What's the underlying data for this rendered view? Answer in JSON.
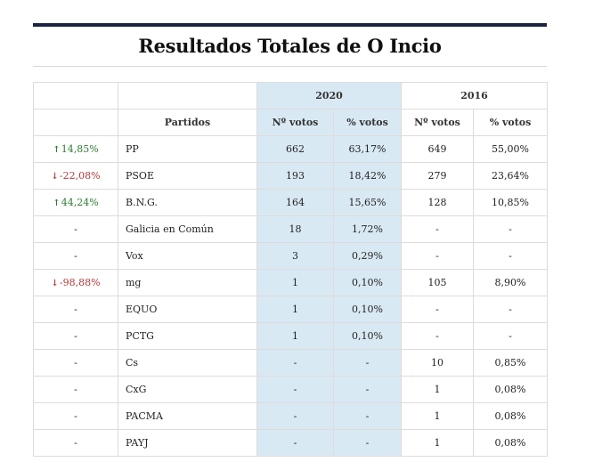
{
  "title": "Resultados Totales de O Incio",
  "header": {
    "year_2020": "2020",
    "year_2016": "2016",
    "partidos": "Partidos",
    "votos_2020": "Nº votos",
    "pct_2020": "% votos",
    "votos_2016": "Nº votos",
    "pct_2016": "% votos"
  },
  "rows": [
    {
      "change": "14,85%",
      "dir": "up",
      "party": "PP",
      "v20": "662",
      "p20": "63,17%",
      "v16": "649",
      "p16": "55,00%"
    },
    {
      "change": "-22,08%",
      "dir": "down",
      "party": "PSOE",
      "v20": "193",
      "p20": "18,42%",
      "v16": "279",
      "p16": "23,64%"
    },
    {
      "change": "44,24%",
      "dir": "up",
      "party": "B.N.G.",
      "v20": "164",
      "p20": "15,65%",
      "v16": "128",
      "p16": "10,85%"
    },
    {
      "change": "-",
      "dir": "none",
      "party": "Galicia en Común",
      "v20": "18",
      "p20": "1,72%",
      "v16": "-",
      "p16": "-"
    },
    {
      "change": "-",
      "dir": "none",
      "party": "Vox",
      "v20": "3",
      "p20": "0,29%",
      "v16": "-",
      "p16": "-"
    },
    {
      "change": "-98,88%",
      "dir": "down",
      "party": "mg",
      "v20": "1",
      "p20": "0,10%",
      "v16": "105",
      "p16": "8,90%"
    },
    {
      "change": "-",
      "dir": "none",
      "party": "EQUO",
      "v20": "1",
      "p20": "0,10%",
      "v16": "-",
      "p16": "-"
    },
    {
      "change": "-",
      "dir": "none",
      "party": "PCTG",
      "v20": "1",
      "p20": "0,10%",
      "v16": "-",
      "p16": "-"
    },
    {
      "change": "-",
      "dir": "none",
      "party": "Cs",
      "v20": "-",
      "p20": "-",
      "v16": "10",
      "p16": "0,85%"
    },
    {
      "change": "-",
      "dir": "none",
      "party": "CxG",
      "v20": "-",
      "p20": "-",
      "v16": "1",
      "p16": "0,08%"
    },
    {
      "change": "-",
      "dir": "none",
      "party": "PACMA",
      "v20": "-",
      "p20": "-",
      "v16": "1",
      "p16": "0,08%"
    },
    {
      "change": "-",
      "dir": "none",
      "party": "PAYJ",
      "v20": "-",
      "p20": "-",
      "v16": "1",
      "p16": "0,08%"
    }
  ],
  "colors": {
    "up": "#2e7d32",
    "down": "#b23a3a",
    "highlight": "#d9e9f4",
    "topbar": "#1a2340"
  }
}
